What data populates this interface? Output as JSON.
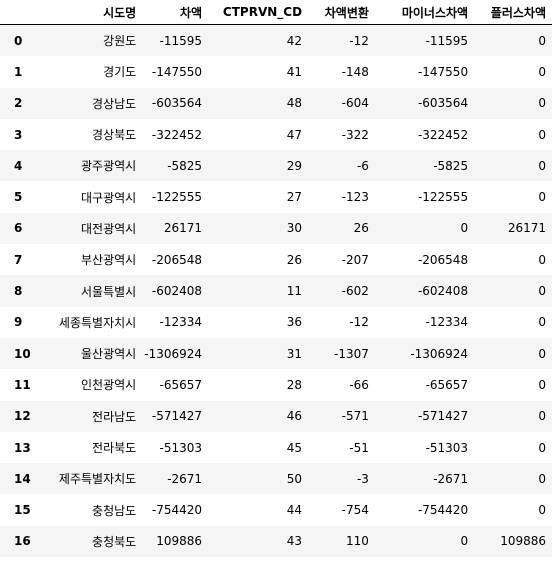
{
  "dataframe": {
    "columns": [
      "",
      "시도명",
      "차액",
      "CTPRVN_CD",
      "차액변환",
      "마이너스차액",
      "플러스차액"
    ],
    "rows": [
      {
        "index": "0",
        "sido": "강원도",
        "diff": "-11595",
        "cd": "42",
        "chg": "-12",
        "minus": "-11595",
        "plus": "0"
      },
      {
        "index": "1",
        "sido": "경기도",
        "diff": "-147550",
        "cd": "41",
        "chg": "-148",
        "minus": "-147550",
        "plus": "0"
      },
      {
        "index": "2",
        "sido": "경상남도",
        "diff": "-603564",
        "cd": "48",
        "chg": "-604",
        "minus": "-603564",
        "plus": "0"
      },
      {
        "index": "3",
        "sido": "경상북도",
        "diff": "-322452",
        "cd": "47",
        "chg": "-322",
        "minus": "-322452",
        "plus": "0"
      },
      {
        "index": "4",
        "sido": "광주광역시",
        "diff": "-5825",
        "cd": "29",
        "chg": "-6",
        "minus": "-5825",
        "plus": "0"
      },
      {
        "index": "5",
        "sido": "대구광역시",
        "diff": "-122555",
        "cd": "27",
        "chg": "-123",
        "minus": "-122555",
        "plus": "0"
      },
      {
        "index": "6",
        "sido": "대전광역시",
        "diff": "26171",
        "cd": "30",
        "chg": "26",
        "minus": "0",
        "plus": "26171"
      },
      {
        "index": "7",
        "sido": "부산광역시",
        "diff": "-206548",
        "cd": "26",
        "chg": "-207",
        "minus": "-206548",
        "plus": "0"
      },
      {
        "index": "8",
        "sido": "서울특별시",
        "diff": "-602408",
        "cd": "11",
        "chg": "-602",
        "minus": "-602408",
        "plus": "0"
      },
      {
        "index": "9",
        "sido": "세종특별자치시",
        "diff": "-12334",
        "cd": "36",
        "chg": "-12",
        "minus": "-12334",
        "plus": "0"
      },
      {
        "index": "10",
        "sido": "울산광역시",
        "diff": "-1306924",
        "cd": "31",
        "chg": "-1307",
        "minus": "-1306924",
        "plus": "0"
      },
      {
        "index": "11",
        "sido": "인천광역시",
        "diff": "-65657",
        "cd": "28",
        "chg": "-66",
        "minus": "-65657",
        "plus": "0"
      },
      {
        "index": "12",
        "sido": "전라남도",
        "diff": "-571427",
        "cd": "46",
        "chg": "-571",
        "minus": "-571427",
        "plus": "0"
      },
      {
        "index": "13",
        "sido": "전라북도",
        "diff": "-51303",
        "cd": "45",
        "chg": "-51",
        "minus": "-51303",
        "plus": "0"
      },
      {
        "index": "14",
        "sido": "제주특별자치도",
        "diff": "-2671",
        "cd": "50",
        "chg": "-3",
        "minus": "-2671",
        "plus": "0"
      },
      {
        "index": "15",
        "sido": "충청남도",
        "diff": "-754420",
        "cd": "44",
        "chg": "-754",
        "minus": "-754420",
        "plus": "0"
      },
      {
        "index": "16",
        "sido": "충청북도",
        "diff": "109886",
        "cd": "43",
        "chg": "110",
        "minus": "0",
        "plus": "109886"
      }
    ]
  },
  "colors": {
    "row_stripe": "#f5f5f5",
    "header_border": "#000000"
  }
}
